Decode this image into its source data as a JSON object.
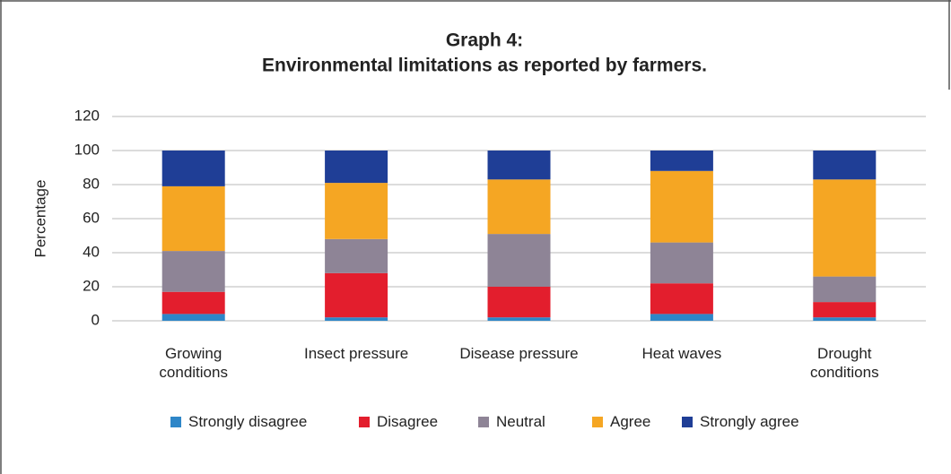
{
  "chart_data": {
    "type": "stacked_bar",
    "title": "Graph 4:",
    "subtitle": "Environmental limitations as reported by farmers.",
    "y_label": "Percentage",
    "categories": [
      "Growing\nconditions",
      "Insect pressure",
      "Disease pressure",
      "Heat waves",
      "Drought\nconditions"
    ],
    "series": [
      {
        "name": "Strongly disagree",
        "color": "#2e86c8",
        "values": [
          4,
          2,
          2,
          4,
          2
        ]
      },
      {
        "name": "Disagree",
        "color": "#e31e2d",
        "values": [
          13,
          26,
          18,
          18,
          9
        ]
      },
      {
        "name": "Neutral",
        "color": "#8e8496",
        "values": [
          24,
          20,
          31,
          24,
          15
        ]
      },
      {
        "name": "Agree",
        "color": "#f5a623",
        "values": [
          38,
          33,
          32,
          42,
          57
        ]
      },
      {
        "name": "Strongly agree",
        "color": "#1f3e96",
        "values": [
          21,
          19,
          17,
          12,
          17
        ]
      }
    ],
    "ylim": [
      0,
      120
    ],
    "yticks": [
      0,
      20,
      40,
      60,
      80,
      100,
      120
    ],
    "grid": true,
    "legend": "bottom"
  }
}
